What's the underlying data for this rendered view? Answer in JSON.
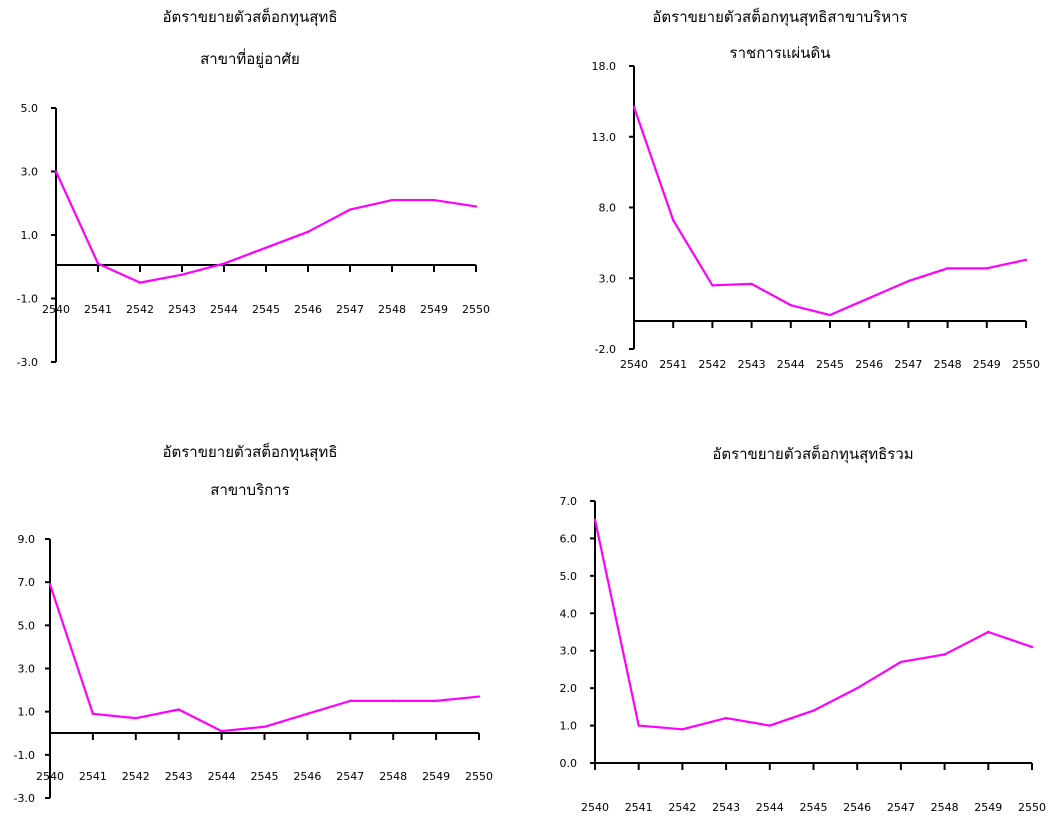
{
  "chart_data": [
    {
      "type": "line",
      "title": [
        "อัตราขยายตัวสต็อกทุนสุทธิ",
        "สาขาที่อยู่อาศัย"
      ],
      "categories": [
        "2540",
        "2541",
        "2542",
        "2543",
        "2544",
        "2545",
        "2546",
        "2547",
        "2548",
        "2549",
        "2550"
      ],
      "series": [
        {
          "values": [
            3.0,
            0.1,
            -0.5,
            -0.25,
            0.1,
            0.6,
            1.1,
            1.8,
            2.1,
            2.1,
            1.9
          ]
        }
      ],
      "y_ticks": [
        "5.0",
        "3.0",
        "1.0",
        "-1.0",
        "-3.0"
      ],
      "ylim": [
        -3,
        5
      ],
      "color": "#ff00ff"
    },
    {
      "type": "line",
      "title": [
        "อัตราขยายตัวสต็อกทุนสุทธิสาขาบริหาร",
        "ราชการแผ่นดิน"
      ],
      "categories": [
        "2540",
        "2541",
        "2542",
        "2543",
        "2544",
        "2545",
        "2546",
        "2547",
        "2548",
        "2549",
        "2550"
      ],
      "series": [
        {
          "values": [
            15.1,
            7.1,
            2.5,
            2.6,
            1.1,
            0.4,
            1.6,
            2.8,
            3.7,
            3.7,
            4.3
          ]
        }
      ],
      "y_ticks": [
        "18.0",
        "13.0",
        "8.0",
        "3.0",
        "-2.0"
      ],
      "ylim": [
        -2,
        18
      ],
      "color": "#ff00ff"
    },
    {
      "type": "line",
      "title": [
        "อัตราขยายตัวสต็อกทุนสุทธิ",
        "สาขาบริการ"
      ],
      "categories": [
        "2540",
        "2541",
        "2542",
        "2543",
        "2544",
        "2545",
        "2546",
        "2547",
        "2548",
        "2549",
        "2550"
      ],
      "series": [
        {
          "values": [
            6.9,
            0.9,
            0.7,
            1.1,
            0.1,
            0.3,
            0.9,
            1.5,
            1.5,
            1.5,
            1.7
          ]
        }
      ],
      "y_ticks": [
        "9.0",
        "7.0",
        "5.0",
        "3.0",
        "1.0",
        "-1.0",
        "-3.0"
      ],
      "ylim": [
        -3,
        9
      ],
      "color": "#ff00ff"
    },
    {
      "type": "line",
      "title": [
        "อัตราขยายตัวสต็อกทุนสุทธิรวม"
      ],
      "categories": [
        "2540",
        "2541",
        "2542",
        "2543",
        "2544",
        "2545",
        "2546",
        "2547",
        "2548",
        "2549",
        "2550"
      ],
      "series": [
        {
          "values": [
            6.5,
            1.0,
            0.9,
            1.2,
            1.0,
            1.4,
            2.0,
            2.7,
            2.9,
            3.5,
            3.1
          ]
        }
      ],
      "y_ticks": [
        "7.0",
        "6.0",
        "5.0",
        "4.0",
        "3.0",
        "2.0",
        "1.0",
        "0.0"
      ],
      "ylim": [
        0,
        7
      ],
      "color": "#ff00ff"
    }
  ]
}
